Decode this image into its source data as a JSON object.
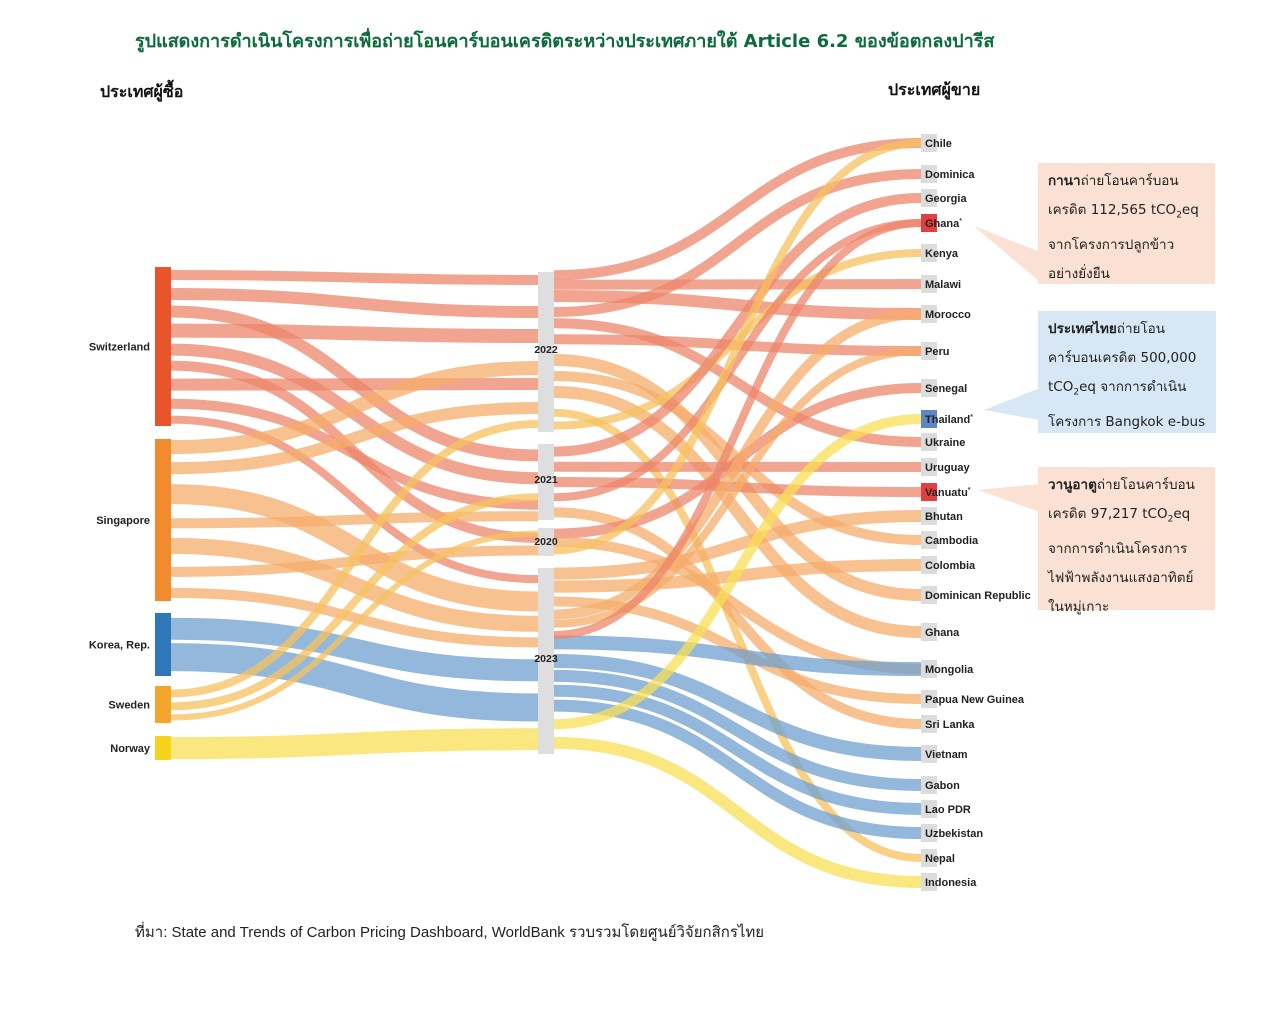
{
  "title": "รูปแสดงการดำเนินโครงการเพื่อถ่ายโอนคาร์บอนเครดิตระหว่างประเทศภายใต้ Article 6.2 ของข้อตกลงปารีส",
  "left_header": "ประเทศผู้ซื้อ",
  "right_header": "ประเทศผู้ขาย",
  "source": "ที่มา:  State and Trends of Carbon Pricing Dashboard, WorldBank รวบรวมโดยศูนย์วิจัยกสิกรไทย",
  "buyers": [
    {
      "name": "Switzerland",
      "color": "#e8552b"
    },
    {
      "name": "Singapore",
      "color": "#f28a2e"
    },
    {
      "name": "Korea, Rep.",
      "color": "#2f78b7"
    },
    {
      "name": "Sweden",
      "color": "#f2a72a"
    },
    {
      "name": "Norway",
      "color": "#f6d31a"
    }
  ],
  "years": [
    "2022",
    "2021",
    "2020",
    "2023"
  ],
  "sellers": [
    {
      "name": "Chile"
    },
    {
      "name": "Dominica"
    },
    {
      "name": "Georgia"
    },
    {
      "name": "Ghana",
      "mark": "*",
      "color": "#e04040"
    },
    {
      "name": "Kenya"
    },
    {
      "name": "Malawi"
    },
    {
      "name": "Morocco"
    },
    {
      "name": "Peru"
    },
    {
      "name": "Senegal"
    },
    {
      "name": "Thailand",
      "mark": "*",
      "color": "#5f86c4"
    },
    {
      "name": "Ukraine"
    },
    {
      "name": "Uruguay"
    },
    {
      "name": "Vanuatu",
      "mark": "*",
      "color": "#e04040"
    },
    {
      "name": "Bhutan"
    },
    {
      "name": "Cambodia"
    },
    {
      "name": "Colombia"
    },
    {
      "name": "Dominican Republic"
    },
    {
      "name": "Ghana"
    },
    {
      "name": "Mongolia"
    },
    {
      "name": "Papua New Guinea"
    },
    {
      "name": "Sri Lanka"
    },
    {
      "name": "Vietnam"
    },
    {
      "name": "Gabon"
    },
    {
      "name": "Lao PDR"
    },
    {
      "name": "Uzbekistan"
    },
    {
      "name": "Nepal"
    },
    {
      "name": "Indonesia"
    }
  ],
  "callouts": [
    {
      "lines": [
        [
          "กานา",
          "ถ่ายโอนคาร์บอน"
        ],
        [
          "",
          "เครดิต 112,565 tCO",
          "2",
          "eq"
        ],
        [
          "",
          "จากโครงการปลูกข้าว"
        ],
        [
          "",
          "อย่างยั่งยืน"
        ]
      ],
      "bg": "#fbe1d3"
    },
    {
      "lines": [
        [
          "ประเทศไทย",
          "ถ่ายโอน"
        ],
        [
          "",
          "คาร์บอนเครดิต 500,000"
        ],
        [
          "",
          "tCO",
          "2",
          "eq จากการดำเนิน"
        ],
        [
          "",
          "โครงการ Bangkok e-bus"
        ]
      ],
      "bg": "#d7e7f5"
    },
    {
      "lines": [
        [
          "วานูอาตู",
          "ถ่ายโอนคาร์บอน"
        ],
        [
          "",
          "เครดิต 97,217 tCO",
          "2",
          "eq"
        ],
        [
          "",
          "จากการดำเนินโครงการ"
        ],
        [
          "",
          "ไฟฟ้าพลังงานแสงอาทิตย์"
        ],
        [
          "",
          "ในหมู่เกาะ"
        ]
      ],
      "bg": "#fbe1d3"
    }
  ]
}
